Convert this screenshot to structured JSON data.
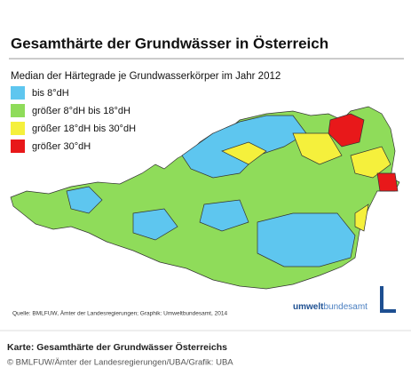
{
  "header": {
    "title": "Gesamthärte der Grundwässer in Österreich",
    "subtitle": "Median der Härtegrade je Grundwasserkörper im Jahr 2012"
  },
  "legend": [
    {
      "label": "bis 8°dH",
      "color": "#5ec6ef"
    },
    {
      "label": "größer 8°dH bis 18°dH",
      "color": "#8fdc5a"
    },
    {
      "label": "größer 18°dH bis 30°dH",
      "color": "#f5f03c"
    },
    {
      "label": "größer 30°dH",
      "color": "#e8181a"
    }
  ],
  "source": "Quelle: BMLFUW, Ämter der Landesregierungen; Graphik: Umweltbundesamt, 2014",
  "logo": {
    "part1": "umwelt",
    "part2": "bundesamt"
  },
  "caption": "Karte: Gesamthärte der Grundwässer Österreichs",
  "credit": "© BMLFUW/Ämter der Landesregierungen/UBA/Grafik: UBA"
}
